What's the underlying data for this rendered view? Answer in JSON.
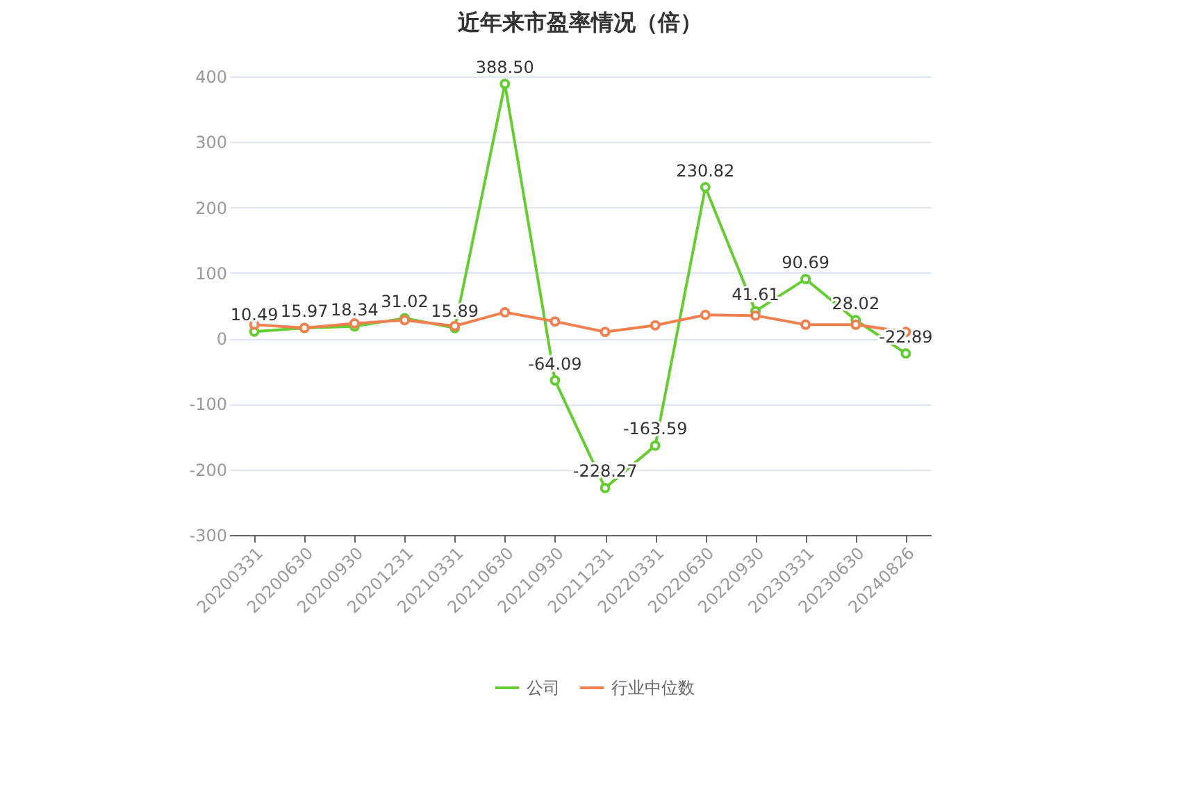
{
  "chart_data": {
    "type": "line",
    "title": "近年来市盈率情况（倍）",
    "categories": [
      "20200331",
      "20200630",
      "20200930",
      "20201231",
      "20210331",
      "20210630",
      "20210930",
      "20211231",
      "20220331",
      "20220630",
      "20220930",
      "20230331",
      "20230630",
      "20240826"
    ],
    "series": [
      {
        "name": "公司",
        "color": "#66cc33",
        "values": [
          10.49,
          15.97,
          18.34,
          31.02,
          15.89,
          388.5,
          -64.09,
          -228.27,
          -163.59,
          230.82,
          41.61,
          90.69,
          28.02,
          -22.89
        ],
        "value_labels": [
          "10.49",
          "15.97",
          "18.34",
          "31.02",
          "15.89",
          "388.50",
          "-64.09",
          "-228.27",
          "-163.59",
          "230.82",
          "41.61",
          "90.69",
          "28.02",
          "-22.89"
        ]
      },
      {
        "name": "行业中位数",
        "color": "#f08050",
        "values": [
          21,
          16,
          23,
          28,
          19,
          40,
          26,
          10,
          20,
          36,
          35,
          21,
          21,
          10
        ]
      }
    ],
    "ylim": [
      -300,
      400
    ],
    "yticks": [
      -300,
      -200,
      -100,
      0,
      100,
      200,
      300,
      400
    ],
    "grid": "y",
    "legend": "bottom",
    "marker": "circle",
    "line_style": "solid"
  }
}
